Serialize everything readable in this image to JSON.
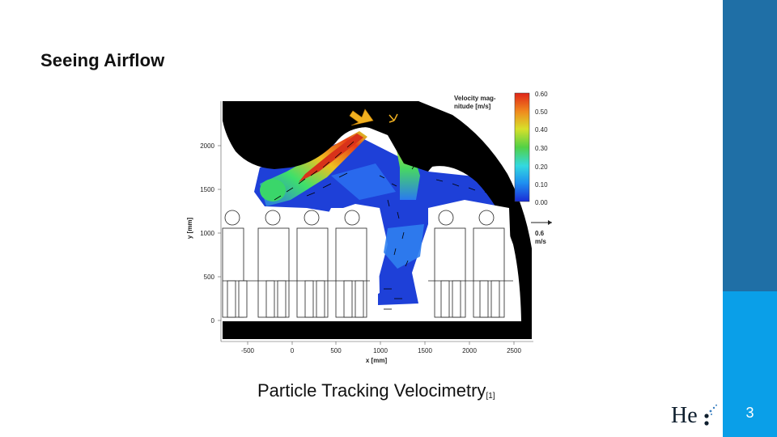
{
  "slide": {
    "title": "Seeing Airflow",
    "caption": "Particle Tracking Velocimetry",
    "caption_ref": "[1]",
    "page_number": "3",
    "logo_text": "He",
    "colors": {
      "sidebar_top": "#1f6fa6",
      "sidebar_bottom": "#0a9fe8"
    }
  },
  "figure": {
    "colorbar": {
      "title_line1": "Velocity mag-",
      "title_line2": "nitude [m/s]",
      "ticks": [
        "0.60",
        "0.50",
        "0.40",
        "0.30",
        "0.20",
        "0.10",
        "0.00"
      ]
    },
    "reference_vector": {
      "value": "0.6",
      "unit": "m/s"
    },
    "x_axis": {
      "label": "x [mm]",
      "ticks": [
        "-500",
        "0",
        "500",
        "1000",
        "1500",
        "2000",
        "2500"
      ]
    },
    "y_axis": {
      "label": "y [mm]",
      "ticks": [
        "2000",
        "1500",
        "1000",
        "500",
        "0"
      ]
    }
  }
}
